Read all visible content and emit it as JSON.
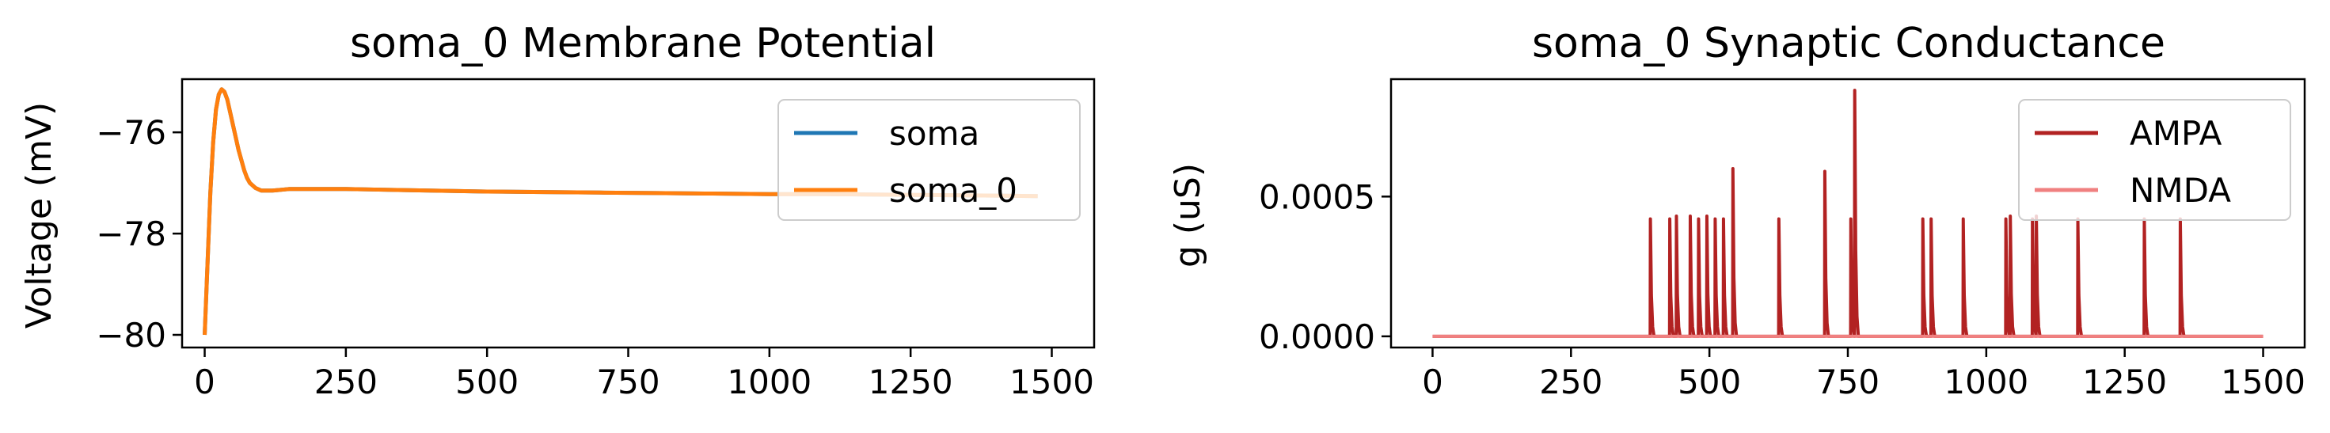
{
  "chart_data": [
    {
      "type": "line",
      "title": "soma_0 Membrane Potential",
      "xlabel": "",
      "ylabel": "Voltage (mV)",
      "xlim": [
        -40,
        1575
      ],
      "ylim": [
        -80.25,
        -74.95
      ],
      "xticks": [
        0,
        250,
        500,
        750,
        1000,
        1250,
        1500
      ],
      "xtick_labels": [
        "0",
        "250",
        "500",
        "750",
        "1000",
        "1250",
        "1500"
      ],
      "yticks": [
        -76,
        -78,
        -80
      ],
      "ytick_labels": [
        "−76",
        "−78",
        "−80"
      ],
      "legend": "upper right",
      "series": [
        {
          "name": "soma",
          "color": "#1f77b4",
          "x": [
            0,
            5,
            10,
            15,
            20,
            25,
            30,
            35,
            40,
            45,
            50,
            55,
            60,
            65,
            70,
            75,
            80,
            90,
            100,
            110,
            120,
            130,
            140,
            150,
            175,
            200,
            250,
            300,
            400,
            500,
            600,
            700,
            800,
            900,
            1000,
            1100,
            1200,
            1300,
            1400,
            1475
          ],
          "y": [
            -80.0,
            -78.6,
            -77.2,
            -76.2,
            -75.55,
            -75.25,
            -75.15,
            -75.2,
            -75.35,
            -75.6,
            -75.85,
            -76.1,
            -76.35,
            -76.55,
            -76.75,
            -76.9,
            -77.0,
            -77.1,
            -77.15,
            -77.15,
            -77.15,
            -77.14,
            -77.13,
            -77.12,
            -77.12,
            -77.12,
            -77.12,
            -77.13,
            -77.15,
            -77.17,
            -77.18,
            -77.19,
            -77.2,
            -77.21,
            -77.22,
            -77.22,
            -77.23,
            -77.24,
            -77.25,
            -77.26
          ]
        },
        {
          "name": "soma_0",
          "color": "#ff7f0e",
          "x": [
            0,
            5,
            10,
            15,
            20,
            25,
            30,
            35,
            40,
            45,
            50,
            55,
            60,
            65,
            70,
            75,
            80,
            90,
            100,
            110,
            120,
            130,
            140,
            150,
            175,
            200,
            250,
            300,
            400,
            500,
            600,
            700,
            800,
            900,
            1000,
            1100,
            1200,
            1300,
            1400,
            1475
          ],
          "y": [
            -80.0,
            -78.6,
            -77.2,
            -76.2,
            -75.55,
            -75.25,
            -75.15,
            -75.2,
            -75.35,
            -75.6,
            -75.85,
            -76.1,
            -76.35,
            -76.55,
            -76.75,
            -76.9,
            -77.0,
            -77.1,
            -77.15,
            -77.15,
            -77.15,
            -77.14,
            -77.13,
            -77.12,
            -77.12,
            -77.12,
            -77.12,
            -77.13,
            -77.15,
            -77.17,
            -77.18,
            -77.19,
            -77.2,
            -77.21,
            -77.22,
            -77.22,
            -77.23,
            -77.24,
            -77.25,
            -77.26
          ]
        }
      ]
    },
    {
      "type": "line",
      "title": "soma_0 Synaptic Conductance",
      "xlabel": "",
      "ylabel": "g (uS)",
      "xlim": [
        -75,
        1575
      ],
      "ylim": [
        -4e-05,
        0.00092
      ],
      "xticks": [
        0,
        250,
        500,
        750,
        1000,
        1250,
        1500
      ],
      "xtick_labels": [
        "0",
        "250",
        "500",
        "750",
        "1000",
        "1250",
        "1500"
      ],
      "yticks": [
        0.0005,
        0.0
      ],
      "ytick_labels": [
        "0.0005",
        "0.0000"
      ],
      "legend": "upper right",
      "series": [
        {
          "name": "AMPA",
          "color": "#b22222",
          "spikes": [
            {
              "t": 393,
              "g": 0.00042
            },
            {
              "t": 428,
              "g": 0.00042
            },
            {
              "t": 440,
              "g": 0.00043
            },
            {
              "t": 465,
              "g": 0.00043
            },
            {
              "t": 480,
              "g": 0.00042
            },
            {
              "t": 495,
              "g": 0.00043
            },
            {
              "t": 510,
              "g": 0.00042
            },
            {
              "t": 525,
              "g": 0.00042
            },
            {
              "t": 542,
              "g": 0.0006
            },
            {
              "t": 625,
              "g": 0.00042
            },
            {
              "t": 708,
              "g": 0.00059
            },
            {
              "t": 755,
              "g": 0.00042
            },
            {
              "t": 762,
              "g": 0.00088
            },
            {
              "t": 885,
              "g": 0.00042
            },
            {
              "t": 900,
              "g": 0.00042
            },
            {
              "t": 958,
              "g": 0.00042
            },
            {
              "t": 1035,
              "g": 0.00042
            },
            {
              "t": 1043,
              "g": 0.00043
            },
            {
              "t": 1083,
              "g": 0.00042
            },
            {
              "t": 1090,
              "g": 0.00043
            },
            {
              "t": 1165,
              "g": 0.00042
            },
            {
              "t": 1285,
              "g": 0.00042
            },
            {
              "t": 1350,
              "g": 0.00042
            }
          ],
          "x_range": [
            0,
            1500
          ]
        },
        {
          "name": "NMDA",
          "color": "#f08080",
          "x": [
            0,
            1500
          ],
          "y": [
            0.0,
            0.0
          ]
        }
      ]
    }
  ]
}
